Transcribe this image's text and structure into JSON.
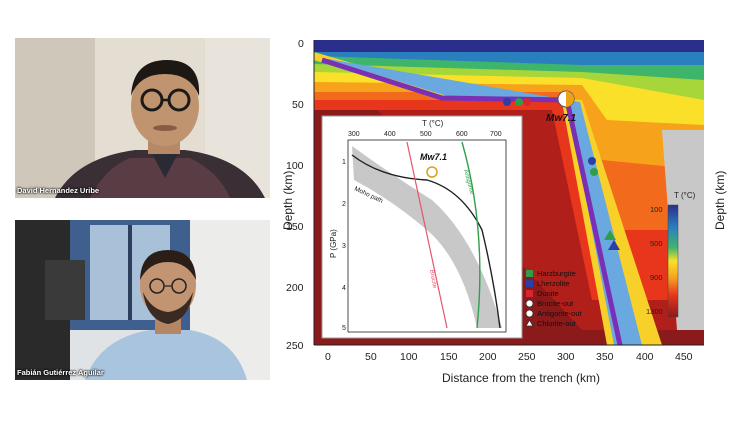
{
  "participants": [
    {
      "name": "David Hernandez Uribe"
    },
    {
      "name": "Fabián Gutiérrez Aguilar"
    }
  ],
  "shared_figure": {
    "main": {
      "xlabel": "Distance from the trench (km)",
      "ylabel_left": "Depth (km)",
      "ylabel_right": "Depth (km)",
      "x_ticks": [
        "0",
        "50",
        "100",
        "150",
        "200",
        "250",
        "300",
        "350",
        "400",
        "450"
      ],
      "y_ticks": [
        "0",
        "50",
        "100",
        "150",
        "200",
        "250"
      ],
      "event_label": "Mw7.1",
      "colorbar_title": "T (°C)",
      "colorbar_ticks": [
        "100",
        "500",
        "900",
        "1300"
      ],
      "legend": [
        {
          "label": "Harzburgite",
          "color": "#2e9e4a"
        },
        {
          "label": "Lherzolite",
          "color": "#2b3fa6"
        },
        {
          "label": "Dunite",
          "color": "#d9262e"
        },
        {
          "label": "Brucite-out",
          "color": "#ffffff"
        },
        {
          "label": "Antigorite-out",
          "color": "#ffffff"
        },
        {
          "label": "Chlorite-out",
          "color": "#ffffff"
        }
      ]
    },
    "inset": {
      "xlabel": "T (°C)",
      "ylabel": "P (GPa)",
      "x_ticks": [
        "300",
        "400",
        "500",
        "600",
        "700"
      ],
      "y_ticks": [
        "1",
        "2",
        "3",
        "4",
        "5"
      ],
      "event_label": "Mw7.1",
      "curve_labels": [
        "Moho path",
        "Brucite",
        "Antigorite"
      ]
    }
  }
}
